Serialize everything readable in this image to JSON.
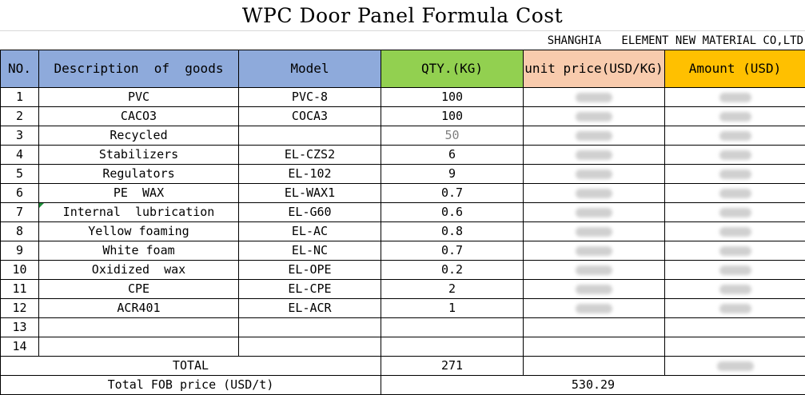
{
  "title": "WPC Door Panel Formula Cost",
  "company": "SHANGHIA   ELEMENT NEW MATERIAL CO,LTD",
  "headers": {
    "no": "NO.",
    "description": "Description  of  goods",
    "model": "Model",
    "qty": "QTY.(KG)",
    "unit_price": "unit price(USD/KG)",
    "amount": "Amount (USD)"
  },
  "rows": [
    {
      "no": "1",
      "description": "PVC",
      "model": "PVC-8",
      "qty": "100"
    },
    {
      "no": "2",
      "description": "CACO3",
      "model": "COCA3",
      "qty": "100"
    },
    {
      "no": "3",
      "description": "Recycled",
      "model": "",
      "qty": "50"
    },
    {
      "no": "4",
      "description": "Stabilizers",
      "model": "EL-CZS2",
      "qty": "6"
    },
    {
      "no": "5",
      "description": "Regulators",
      "model": "EL-102",
      "qty": "9"
    },
    {
      "no": "6",
      "description": "PE  WAX",
      "model": "EL-WAX1",
      "qty": "0.7"
    },
    {
      "no": "7",
      "description": "Internal  lubrication",
      "model": "EL-G60",
      "qty": "0.6"
    },
    {
      "no": "8",
      "description": "Yellow foaming",
      "model": "EL-AC",
      "qty": "0.8"
    },
    {
      "no": "9",
      "description": "White foam",
      "model": "EL-NC",
      "qty": "0.7"
    },
    {
      "no": "10",
      "description": "Oxidized  wax",
      "model": "EL-OPE",
      "qty": "0.2"
    },
    {
      "no": "11",
      "description": "CPE",
      "model": "EL-CPE",
      "qty": "2"
    },
    {
      "no": "12",
      "description": "ACR401",
      "model": "EL-ACR",
      "qty": "1"
    },
    {
      "no": "13",
      "description": "",
      "model": "",
      "qty": ""
    },
    {
      "no": "14",
      "description": "",
      "model": "",
      "qty": ""
    }
  ],
  "total": {
    "label": "TOTAL",
    "qty": "271"
  },
  "fob": {
    "label": "Total FOB price (USD/t)",
    "value": "530.29"
  }
}
